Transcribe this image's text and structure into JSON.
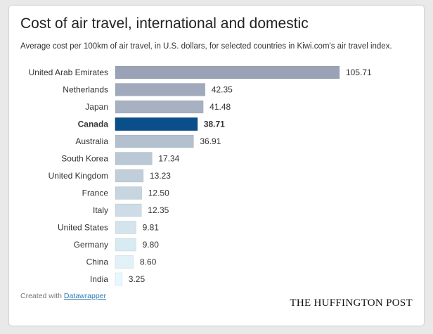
{
  "title": "Cost of air travel, international and domestic",
  "subtitle": "Average cost per 100km of air travel, in U.S. dollars, for selected countries in Kiwi.com's air travel index.",
  "footer": {
    "created_with": "Created with",
    "link_label": "Datawrapper"
  },
  "brand": "THE HUFFINGTON POST",
  "colors": {
    "highlight": "#0b4f8a",
    "scale_high": "#9aa3b6",
    "scale_low": "#e6f9fe"
  },
  "chart_data": {
    "type": "bar",
    "orientation": "horizontal",
    "title": "Cost of air travel, international and domestic",
    "categories": [
      "United Arab Emirates",
      "Netherlands",
      "Japan",
      "Canada",
      "Australia",
      "South Korea",
      "United Kingdom",
      "France",
      "Italy",
      "United States",
      "Germany",
      "China",
      "India"
    ],
    "values": [
      105.71,
      42.35,
      41.48,
      38.71,
      36.91,
      17.34,
      13.23,
      12.5,
      12.35,
      9.81,
      9.8,
      8.6,
      3.25
    ],
    "value_labels": [
      "105.71",
      "42.35",
      "41.48",
      "38.71",
      "36.91",
      "17.34",
      "13.23",
      "12.50",
      "12.35",
      "9.81",
      "9.80",
      "8.60",
      "3.25"
    ],
    "highlighted": "Canada",
    "xlim": [
      0,
      105.71
    ],
    "grid": false
  }
}
